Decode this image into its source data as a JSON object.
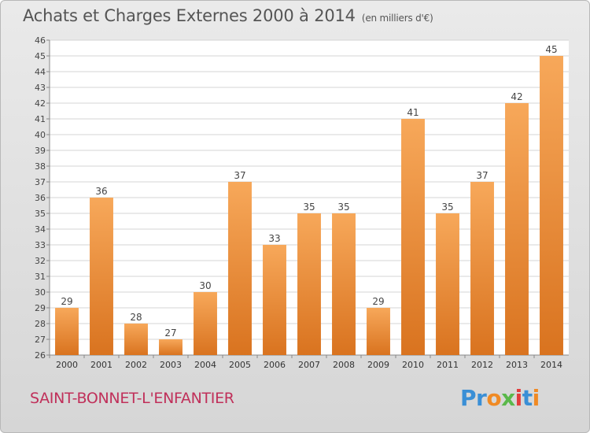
{
  "header": {
    "title": "Achats et Charges Externes 2000 à 2014",
    "unit": "(en milliers d'€)"
  },
  "footer": {
    "place": "SAINT-BONNET-L'ENFANTIER",
    "logo": "Proxiti"
  },
  "colors": {
    "bar_light": "#f7a85a",
    "bar_dark": "#d9731f",
    "place": "#c0305a",
    "logo": [
      "#3a8fd6",
      "#3a8fd6",
      "#f08a24",
      "#5ab84a",
      "#e23c3c",
      "#3a8fd6",
      "#f08a24"
    ]
  },
  "chart_data": {
    "type": "bar",
    "title": "Achats et Charges Externes 2000 à 2014",
    "subtitle": "(en milliers d'€)",
    "categories": [
      "2000",
      "2001",
      "2002",
      "2003",
      "2004",
      "2005",
      "2006",
      "2007",
      "2008",
      "2009",
      "2010",
      "2011",
      "2012",
      "2013",
      "2014"
    ],
    "values": [
      29,
      36,
      28,
      27,
      30,
      37,
      33,
      35,
      35,
      29,
      41,
      35,
      37,
      42,
      45
    ],
    "ylim": [
      26,
      46
    ],
    "yticks": [
      26,
      27,
      28,
      29,
      30,
      31,
      32,
      33,
      34,
      35,
      36,
      37,
      38,
      39,
      40,
      41,
      42,
      43,
      44,
      45,
      46
    ],
    "grid": true,
    "xlabel": "",
    "ylabel": ""
  }
}
